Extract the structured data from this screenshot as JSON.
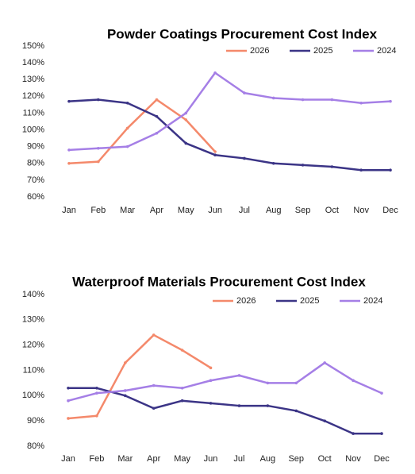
{
  "chart_data": [
    {
      "type": "line",
      "title": "Powder Coatings Procurement Cost Index",
      "categories": [
        "Jan",
        "Feb",
        "Mar",
        "Apr",
        "May",
        "Jun",
        "Jul",
        "Aug",
        "Sep",
        "Oct",
        "Nov",
        "Dec"
      ],
      "series": [
        {
          "name": "2026",
          "color": "#f4896b",
          "values": [
            80,
            81,
            101,
            118,
            106,
            87,
            null,
            null,
            null,
            null,
            null,
            null
          ]
        },
        {
          "name": "2025",
          "color": "#3b3486",
          "values": [
            117,
            118,
            116,
            108,
            92,
            85,
            83,
            80,
            79,
            78,
            76,
            76
          ]
        },
        {
          "name": "2024",
          "color": "#a57fe6",
          "values": [
            88,
            89,
            90,
            98,
            110,
            134,
            122,
            119,
            118,
            118,
            116,
            117
          ]
        }
      ],
      "ylim": [
        60,
        150
      ],
      "yticks": [
        {
          "value": 60,
          "label": "60%"
        },
        {
          "value": 70,
          "label": "70%"
        },
        {
          "value": 80,
          "label": "80%"
        },
        {
          "value": 90,
          "label": "90%"
        },
        {
          "value": 100,
          "label": "100%"
        },
        {
          "value": 110,
          "label": "110%"
        },
        {
          "value": 120,
          "label": "120%"
        },
        {
          "value": 130,
          "label": "130%"
        },
        {
          "value": 140,
          "label": "140%"
        },
        {
          "value": 150,
          "label": "150%"
        }
      ],
      "grid": false,
      "legend": "top"
    },
    {
      "type": "line",
      "title": "Waterproof Materials Procurement Cost Index",
      "categories": [
        "Jan",
        "Feb",
        "Mar",
        "Apr",
        "May",
        "Jun",
        "Jul",
        "Aug",
        "Sep",
        "Oct",
        "Nov",
        "Dec"
      ],
      "series": [
        {
          "name": "2026",
          "color": "#f4896b",
          "values": [
            91,
            92,
            113,
            124,
            118,
            111,
            null,
            null,
            null,
            null,
            null,
            null
          ]
        },
        {
          "name": "2025",
          "color": "#3b3486",
          "values": [
            103,
            103,
            100,
            95,
            98,
            97,
            96,
            96,
            94,
            90,
            85,
            85
          ]
        },
        {
          "name": "2024",
          "color": "#a57fe6",
          "values": [
            98,
            101,
            102,
            104,
            103,
            106,
            108,
            105,
            105,
            113,
            106,
            101
          ]
        }
      ],
      "ylim": [
        80,
        140
      ],
      "yticks": [
        {
          "value": 80,
          "label": "80%"
        },
        {
          "value": 90,
          "label": "90%"
        },
        {
          "value": 100,
          "label": "100%"
        },
        {
          "value": 110,
          "label": "110%"
        },
        {
          "value": 120,
          "label": "120%"
        },
        {
          "value": 130,
          "label": "130%"
        },
        {
          "value": 140,
          "label": "140%"
        }
      ],
      "grid": false,
      "legend": "top"
    }
  ]
}
